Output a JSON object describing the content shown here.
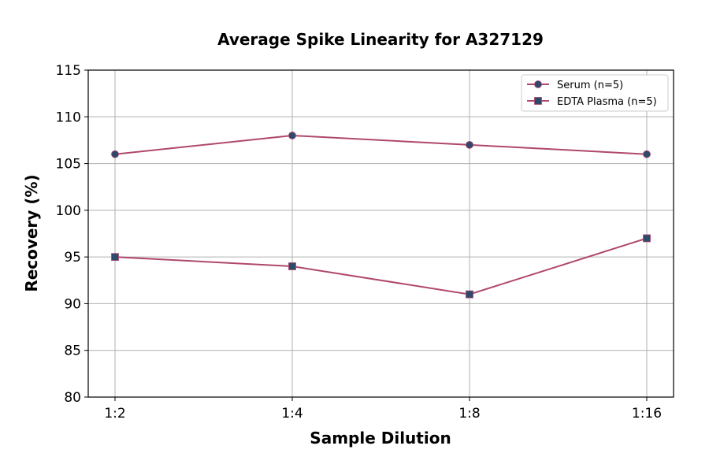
{
  "chart_data": {
    "type": "line",
    "title": "Average Spike Linearity for A327129",
    "xlabel": "Sample Dilution",
    "ylabel": "Recovery (%)",
    "categories": [
      "1:2",
      "1:4",
      "1:8",
      "1:16"
    ],
    "ylim": [
      80,
      115
    ],
    "yticks": [
      80,
      85,
      90,
      95,
      100,
      105,
      110,
      115
    ],
    "grid": true,
    "legend_position": "top-right",
    "series": [
      {
        "name": "Serum (n=5)",
        "values": [
          106,
          108,
          107,
          106
        ],
        "marker": "circle",
        "line_color": "#b0476e",
        "marker_color": "#2e4a6b"
      },
      {
        "name": "EDTA Plasma (n=5)",
        "values": [
          95,
          94,
          91,
          97
        ],
        "marker": "square",
        "line_color": "#b0476e",
        "marker_color": "#2e4a6b"
      }
    ]
  }
}
